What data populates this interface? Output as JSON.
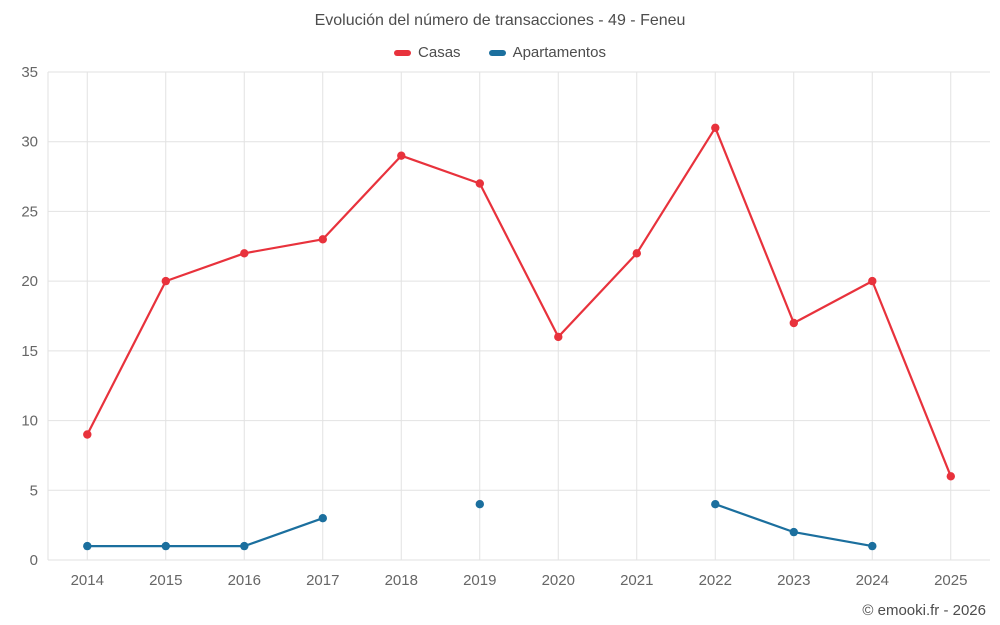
{
  "chart_data": {
    "type": "line",
    "title": "Evolución del número de transacciones - 49 - Feneu",
    "categories": [
      "2014",
      "2015",
      "2016",
      "2017",
      "2018",
      "2019",
      "2020",
      "2021",
      "2022",
      "2023",
      "2024",
      "2025"
    ],
    "series": [
      {
        "name": "Casas",
        "color": "#e8323c",
        "values": [
          9,
          20,
          22,
          23,
          29,
          27,
          16,
          22,
          31,
          17,
          20,
          6
        ]
      },
      {
        "name": "Apartamentos",
        "color": "#1b6f9e",
        "values": [
          1,
          1,
          1,
          3,
          null,
          4,
          null,
          null,
          4,
          2,
          1,
          null
        ]
      }
    ],
    "xlabel": "",
    "ylabel": "",
    "ylim": [
      0,
      35
    ],
    "ytick_step": 5,
    "grid": true,
    "legend_position": "top"
  },
  "footer": "© emooki.fr - 2026",
  "colors": {
    "text": "#4d4d4d",
    "grid": "#e2e2e2",
    "tick_label": "#666666"
  }
}
